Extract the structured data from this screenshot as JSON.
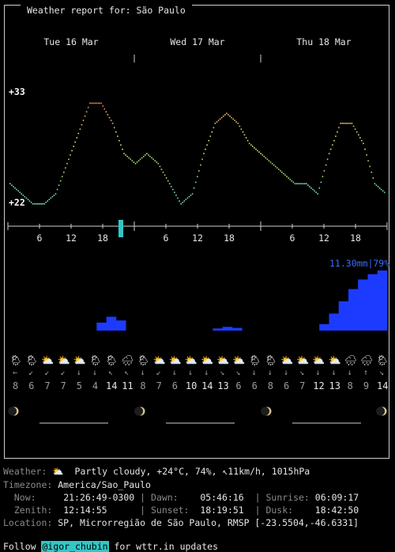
{
  "header": {
    "title": "Weather report for: São Paulo"
  },
  "days": [
    "Tue 16 Mar",
    "Wed 17 Mar",
    "Thu 18 Mar"
  ],
  "temp_axis": {
    "max_label": "+33",
    "min_label": "+22"
  },
  "hour_ticks": [
    "6",
    "12",
    "18",
    "6",
    "12",
    "18",
    "6",
    "12",
    "18"
  ],
  "precip": {
    "label": "11.30mm|79%"
  },
  "hourly": {
    "icons": [
      "🌦",
      "🌦",
      "⛅",
      "⛅",
      "⛅",
      "🌦",
      "🌦",
      "🌧",
      "🌦",
      "⛅",
      "⛅",
      "⛅",
      "⛅",
      "⛅",
      "⛅",
      "🌦",
      "🌦",
      "⛅",
      "⛅",
      "⛅",
      "⛅",
      "🌧",
      "🌧",
      "🌦"
    ],
    "winds": [
      "←",
      "↙",
      "↙",
      "↙",
      "↓",
      "↓",
      "↖",
      "↖",
      "↓",
      "↙",
      "↓",
      "↓",
      "↓",
      "↘",
      "↘",
      "↓",
      "↓",
      "↓",
      "↘",
      "↓",
      "↓",
      "↓",
      "↑",
      "↘"
    ],
    "speeds": [
      "8",
      "6",
      "7",
      "7",
      "5",
      "4",
      "14",
      "11",
      "8",
      "7",
      "6",
      "10",
      "14",
      "13",
      "6",
      "6",
      "8",
      "6",
      "7",
      "12",
      "13",
      "8",
      "9",
      "14"
    ]
  },
  "moon": {
    "phase": "waxing-crescent"
  },
  "info": {
    "weather_label": "Weather:",
    "weather_icon": "⛅",
    "weather_value": "Partly cloudy, +24°C, 74%, ↖11km/h, 1015hPa",
    "timezone_label": "Timezone:",
    "timezone_value": "America/Sao_Paulo",
    "now_label": "Now:",
    "now_value": "21:26:49-0300",
    "dawn_label": "Dawn:",
    "dawn_value": "05:46:16",
    "sunrise_label": "Sunrise:",
    "sunrise_value": "06:09:17",
    "zenith_label": "Zenith:",
    "zenith_value": "12:14:55",
    "sunset_label": "Sunset:",
    "sunset_value": "18:19:51",
    "dusk_label": "Dusk:",
    "dusk_value": "18:42:50",
    "location_label": "Location:",
    "location_value": "SP, Microrregião de São Paulo, RMSP [-23.5504,-46.6331]"
  },
  "footer": {
    "prefix": "Follow ",
    "handle": "@igor_chubin",
    "suffix": " for wttr.in updates"
  },
  "chart_data": {
    "type": "line",
    "title": "",
    "days": [
      "Tue 16 Mar",
      "Wed 17 Mar",
      "Thu 18 Mar"
    ],
    "temperature": {
      "unit": "°C",
      "ylim": [
        22,
        33
      ],
      "values": [
        24,
        23,
        22,
        22,
        23,
        26,
        29,
        32,
        32,
        30,
        27,
        26,
        27,
        26,
        24,
        22,
        23,
        27,
        30,
        31,
        30,
        28,
        27,
        26,
        25,
        24,
        24,
        23,
        27,
        30,
        30,
        28,
        24,
        23
      ]
    },
    "precipitation": {
      "max_label": "11.30mm|79%",
      "values": [
        0,
        0,
        0,
        0,
        0,
        0,
        0,
        0,
        0,
        1.5,
        2.6,
        1.9,
        0,
        0,
        0,
        0,
        0,
        0,
        0,
        0,
        0,
        0.4,
        0.7,
        0.5,
        0,
        0,
        0,
        0,
        0,
        0,
        0,
        0,
        1.2,
        3.2,
        5.5,
        7.8,
        9.6,
        10.6,
        11.3
      ]
    },
    "colors": {
      "precip": "#1c3bff",
      "precip_label": "#3a6bff",
      "cursor": "#34c6c6"
    }
  }
}
